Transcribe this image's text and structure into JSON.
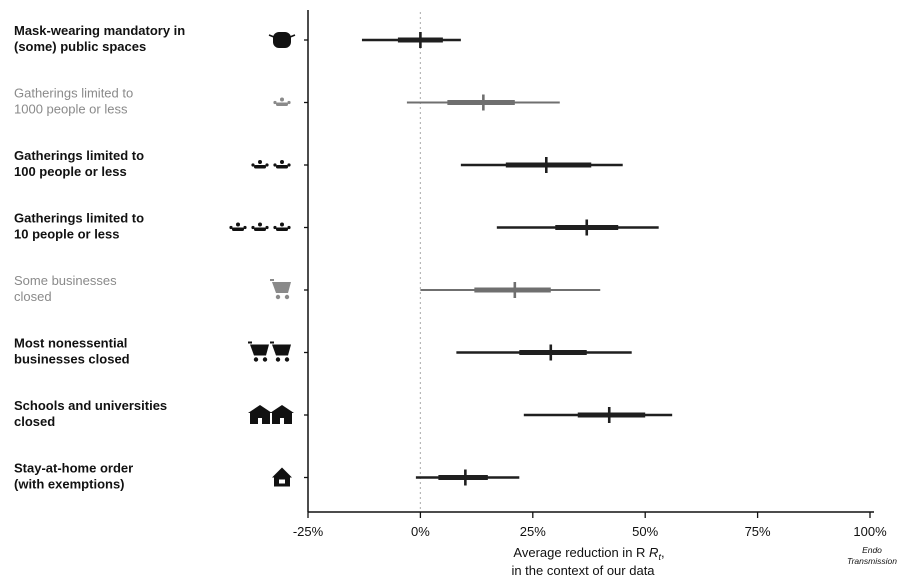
{
  "chart_data": {
    "type": "forest",
    "xlabel_line1": "Average reduction in R",
    "xlabel_subscript": "t",
    "xlabel_suffix": ",",
    "xlabel_line2": "in the context of our data",
    "xlim": [
      -25,
      100
    ],
    "ticks": [
      {
        "value": -25,
        "label": "-25%"
      },
      {
        "value": 0,
        "label": "0%"
      },
      {
        "value": 25,
        "label": "25%"
      },
      {
        "value": 50,
        "label": "50%"
      },
      {
        "value": 75,
        "label": "75%"
      },
      {
        "value": 100,
        "label": "100%"
      }
    ],
    "reference_line": 0,
    "grid": false,
    "footnote": [
      "Endo",
      "Transmission"
    ],
    "interventions": [
      {
        "label": [
          "Mask-wearing mandatory in",
          "(some) public spaces"
        ],
        "median": 0,
        "inner": [
          -5,
          5
        ],
        "outer": [
          -13,
          9
        ],
        "icon": "mask-icon",
        "faded": false
      },
      {
        "label": [
          "Gatherings limited to",
          "1000 people or less"
        ],
        "median": 14,
        "inner": [
          6,
          21
        ],
        "outer": [
          -3,
          31
        ],
        "icon": "group-icon",
        "faded": true
      },
      {
        "label": [
          "Gatherings limited to",
          "100 people or less"
        ],
        "median": 28,
        "inner": [
          19,
          38
        ],
        "outer": [
          9,
          45
        ],
        "icon": "group-icon",
        "faded": false
      },
      {
        "label": [
          "Gatherings limited to",
          "10 people or less"
        ],
        "median": 37,
        "inner": [
          30,
          44
        ],
        "outer": [
          17,
          53
        ],
        "icon": "group-icon",
        "faded": false
      },
      {
        "label": [
          "Some businesses",
          "closed"
        ],
        "median": 21,
        "inner": [
          12,
          29
        ],
        "outer": [
          0,
          40
        ],
        "icon": "cart-icon",
        "faded": true
      },
      {
        "label": [
          "Most nonessential",
          "businesses closed"
        ],
        "median": 29,
        "inner": [
          22,
          37
        ],
        "outer": [
          8,
          47
        ],
        "icon": "cart-icon",
        "faded": false
      },
      {
        "label": [
          "Schools and universities",
          "closed"
        ],
        "median": 42,
        "inner": [
          35,
          50
        ],
        "outer": [
          23,
          56
        ],
        "icon": "school-icon",
        "faded": false
      },
      {
        "label": [
          "Stay-at-home order",
          "(with exemptions)"
        ],
        "median": 10,
        "inner": [
          4,
          15
        ],
        "outer": [
          -1,
          22
        ],
        "icon": "house-icon",
        "faded": false
      }
    ]
  },
  "colors": {
    "ink": "#111111",
    "faded_ink": "#8a8a8a",
    "marker_solid": "#1f1f1f",
    "marker_faded": "#6f6f6f",
    "reference_line": "#b8b8b8"
  }
}
